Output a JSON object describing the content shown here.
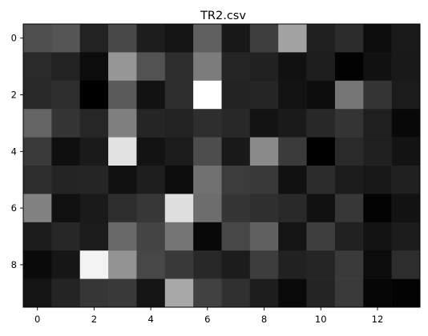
{
  "chart_data": {
    "type": "heatmap",
    "title": "TR2.csv",
    "colormap": "gray",
    "value_range": [
      0,
      255
    ],
    "x_ticks": [
      0,
      2,
      4,
      6,
      8,
      10,
      12
    ],
    "y_ticks": [
      0,
      2,
      4,
      6,
      8
    ],
    "x_range": [
      -0.5,
      13.5
    ],
    "y_range": [
      -0.5,
      9.5
    ],
    "grid": false,
    "values": [
      [
        78,
        85,
        34,
        72,
        29,
        20,
        96,
        24,
        62,
        163,
        31,
        44,
        12,
        26
      ],
      [
        42,
        34,
        12,
        150,
        82,
        46,
        124,
        37,
        33,
        17,
        30,
        2,
        17,
        25
      ],
      [
        41,
        46,
        0,
        90,
        18,
        45,
        255,
        34,
        37,
        19,
        13,
        118,
        53,
        27
      ],
      [
        101,
        53,
        38,
        127,
        37,
        34,
        46,
        40,
        19,
        26,
        40,
        52,
        31,
        8
      ],
      [
        58,
        15,
        26,
        226,
        19,
        27,
        77,
        25,
        138,
        59,
        0,
        42,
        32,
        19
      ],
      [
        45,
        36,
        37,
        17,
        30,
        12,
        113,
        60,
        56,
        17,
        44,
        28,
        24,
        32
      ],
      [
        130,
        16,
        26,
        45,
        55,
        222,
        109,
        53,
        47,
        41,
        17,
        55,
        3,
        18
      ],
      [
        28,
        39,
        27,
        105,
        68,
        117,
        8,
        71,
        97,
        20,
        62,
        33,
        19,
        28
      ],
      [
        10,
        22,
        243,
        147,
        71,
        57,
        40,
        28,
        61,
        33,
        37,
        58,
        12,
        45
      ],
      [
        20,
        36,
        54,
        57,
        20,
        168,
        65,
        48,
        29,
        9,
        36,
        58,
        6,
        3
      ]
    ]
  }
}
